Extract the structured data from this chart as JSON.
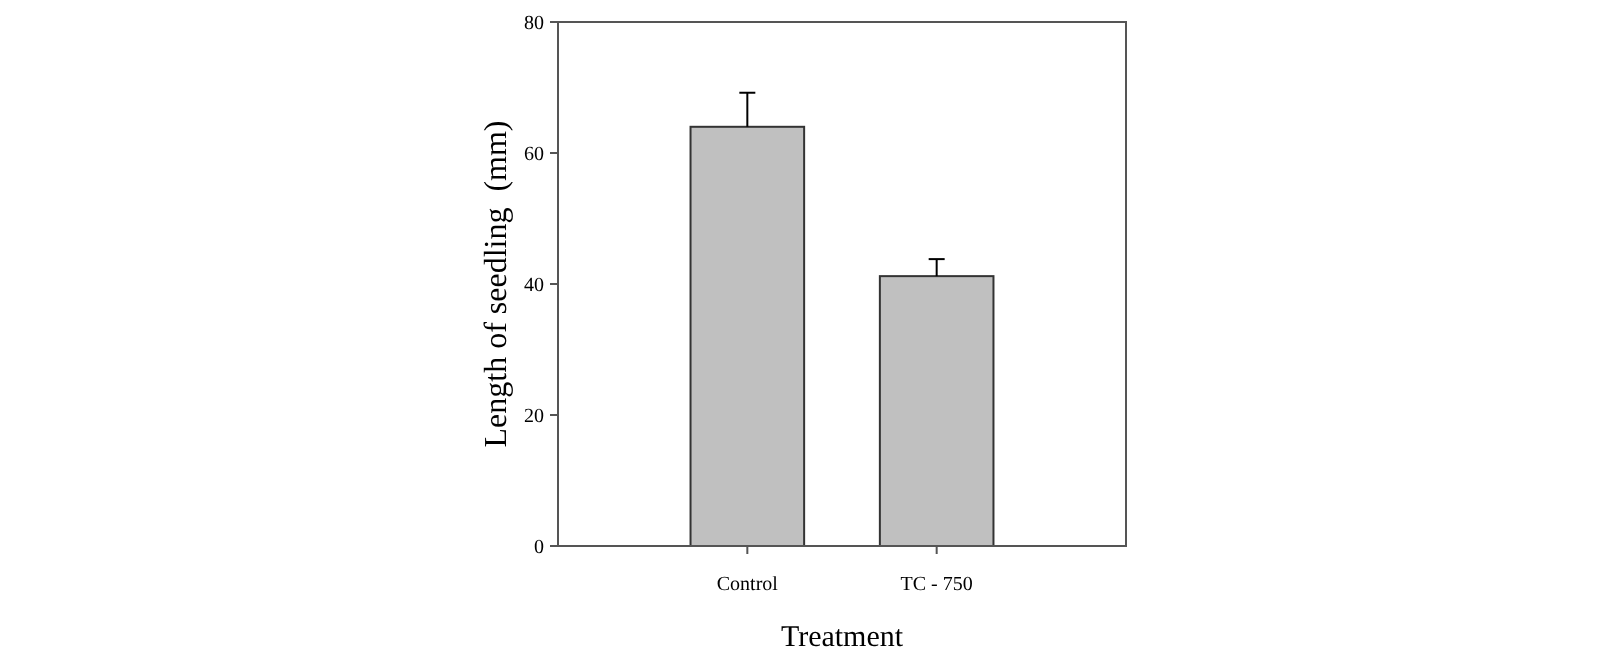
{
  "chart_data": {
    "type": "bar",
    "xlabel": "Treatment",
    "ylabel": "Length of seedling  (mm)",
    "categories": [
      "Control",
      "TC - 750"
    ],
    "values": [
      64,
      41.2
    ],
    "errors": [
      [
        64,
        69.2
      ],
      [
        41.2,
        43.8
      ]
    ],
    "color": "#c0c0c0",
    "ylim": [
      0,
      80
    ],
    "yticks": [
      0,
      20,
      40,
      60,
      80
    ],
    "grid": false
  }
}
